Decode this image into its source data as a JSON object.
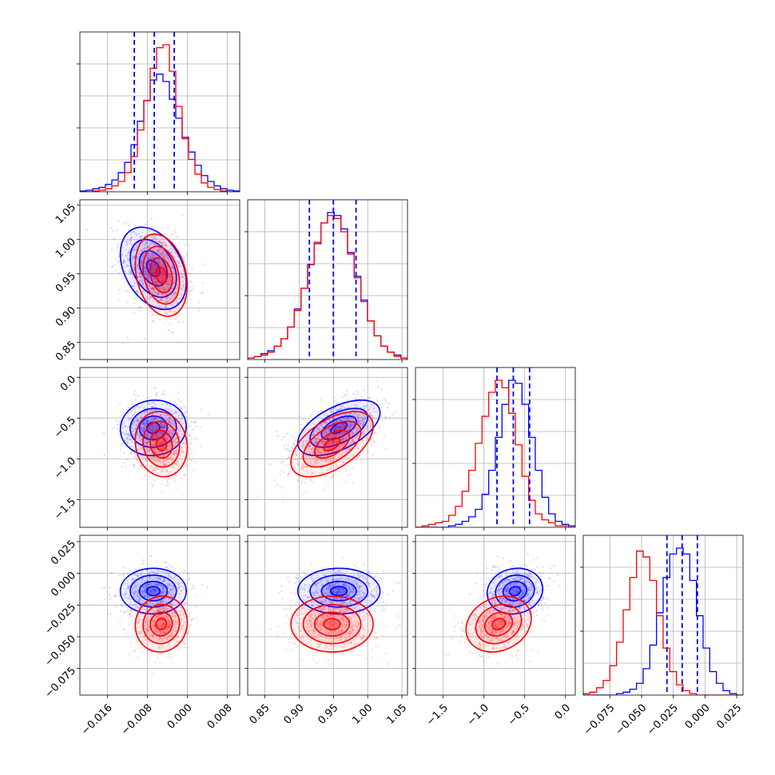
{
  "chart_data": {
    "type": "corner",
    "grid": true,
    "series_colors": [
      "#0000ff",
      "#ff0000"
    ],
    "parameters": [
      {
        "id": "p1",
        "range": [
          -0.0215,
          0.0105
        ],
        "ticks": [
          -0.016,
          -0.008,
          0.0,
          0.008
        ],
        "tick_labels": [
          "−0.016",
          "−0.008",
          "0.000",
          "0.008"
        ]
      },
      {
        "id": "p2",
        "range": [
          0.825,
          1.058
        ],
        "ticks": [
          0.85,
          0.9,
          0.95,
          1.0,
          1.05
        ],
        "tick_labels": [
          "0.85",
          "0.90",
          "0.95",
          "1.00",
          "1.05"
        ]
      },
      {
        "id": "p3",
        "range": [
          -1.84,
          0.12
        ],
        "ticks": [
          -1.5,
          -1.0,
          -0.5,
          0.0
        ],
        "tick_labels": [
          "−1.5",
          "−1.0",
          "−0.5",
          "0.0"
        ]
      },
      {
        "id": "p4",
        "range": [
          -0.096,
          0.03
        ],
        "ticks": [
          -0.075,
          -0.05,
          -0.025,
          0.0,
          0.025
        ],
        "tick_labels": [
          "−0.075",
          "−0.050",
          "−0.025",
          "0.000",
          "0.025"
        ]
      }
    ],
    "marginals": [
      {
        "param": "p1",
        "quantiles": [
          -0.0106,
          -0.0066,
          -0.0026
        ],
        "blue": [
          0.5,
          1,
          2,
          3,
          5,
          8,
          13,
          20,
          32,
          48,
          62,
          76,
          80,
          75,
          63,
          50,
          37,
          27,
          18,
          11,
          7,
          4,
          2,
          1,
          0.5
        ],
        "red": [
          0,
          0,
          0.5,
          1,
          2,
          4,
          7,
          13,
          24,
          42,
          62,
          84,
          98,
          100,
          82,
          58,
          36,
          22,
          12,
          6,
          3,
          1.5,
          0.5,
          0,
          0
        ]
      },
      {
        "param": "p2",
        "quantiles": [
          0.915,
          0.95,
          0.983
        ],
        "blue": [
          1,
          2,
          4,
          6,
          9,
          14,
          22,
          34,
          48,
          64,
          78,
          92,
          99,
          97,
          88,
          72,
          56,
          40,
          26,
          16,
          9,
          5,
          3,
          1
        ],
        "red": [
          1,
          2,
          3,
          5,
          9,
          14,
          22,
          33,
          48,
          64,
          79,
          92,
          97,
          95,
          86,
          71,
          55,
          39,
          26,
          16,
          9,
          5,
          2,
          1
        ]
      },
      {
        "param": "p3",
        "quantiles": [
          -0.84,
          -0.64,
          -0.44
        ],
        "blue": [
          0,
          0,
          0,
          0,
          0,
          1,
          2,
          4,
          7,
          12,
          22,
          38,
          60,
          82,
          98,
          96,
          82,
          60,
          38,
          20,
          9,
          4,
          2,
          1
        ],
        "red": [
          0,
          1,
          2,
          3,
          4,
          8,
          14,
          24,
          38,
          56,
          74,
          90,
          98,
          93,
          76,
          55,
          34,
          18,
          9,
          5,
          3,
          1,
          1,
          0
        ]
      },
      {
        "param": "p4",
        "quantiles": [
          -0.03,
          -0.018,
          -0.006
        ],
        "blue": [
          0,
          0,
          0,
          0,
          0,
          1,
          2,
          4,
          8,
          18,
          34,
          56,
          80,
          96,
          100,
          96,
          78,
          54,
          32,
          16,
          8,
          3,
          1,
          0
        ],
        "red": [
          1,
          2,
          5,
          10,
          20,
          36,
          58,
          80,
          98,
          94,
          78,
          54,
          32,
          16,
          7,
          3,
          1,
          0,
          0,
          0,
          0,
          0,
          0,
          0
        ]
      }
    ],
    "joint_centers": {
      "blue": {
        "p1": -0.0068,
        "p2": 0.958,
        "p3": -0.62,
        "p4": -0.014
      },
      "red": {
        "p1": -0.0052,
        "p2": 0.948,
        "p3": -0.82,
        "p4": -0.04
      }
    },
    "joint_spreads": {
      "blue": {
        "p1": 0.0033,
        "p2": 0.03,
        "p3": 0.17,
        "p4": 0.009
      },
      "red": {
        "p1": 0.0026,
        "p2": 0.03,
        "p3": 0.2,
        "p4": 0.011
      }
    },
    "correlations": {
      "blue": {
        "p1-p2": -0.35,
        "p1-p3": 0.05,
        "p2-p3": 0.55,
        "p1-p4": 0.0,
        "p2-p4": 0.0,
        "p3-p4": 0.1
      },
      "red": {
        "p1-p2": -0.25,
        "p1-p3": -0.1,
        "p2-p3": 0.55,
        "p1-p4": 0.05,
        "p2-p4": 0.0,
        "p3-p4": 0.2
      }
    }
  }
}
